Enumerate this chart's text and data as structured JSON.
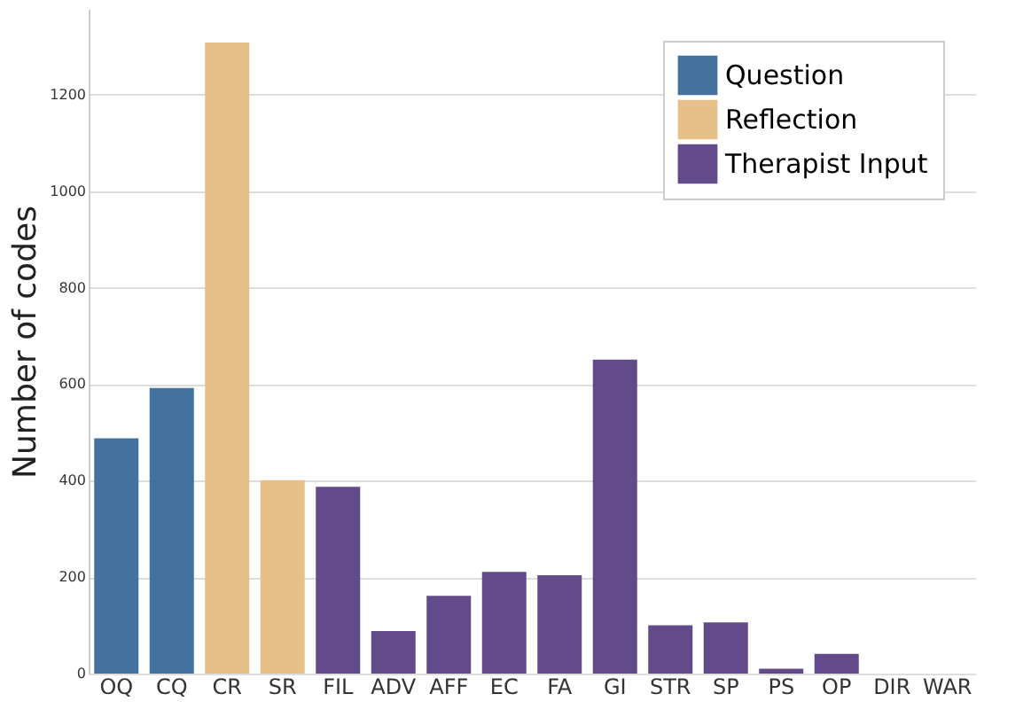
{
  "chart_data": {
    "type": "bar",
    "ylabel": "Number of codes",
    "categories": [
      "OQ",
      "CQ",
      "CR",
      "SR",
      "FIL",
      "ADV",
      "AFF",
      "EC",
      "FA",
      "GI",
      "STR",
      "SP",
      "PS",
      "OP",
      "DIR",
      "WAR"
    ],
    "series": [
      {
        "name": "Question",
        "color": "#44729e",
        "values": [
          488,
          592,
          null,
          null,
          null,
          null,
          null,
          null,
          null,
          null,
          null,
          null,
          null,
          null,
          null,
          null
        ]
      },
      {
        "name": "Reflection",
        "color": "#e6c088",
        "values": [
          null,
          null,
          1308,
          401,
          null,
          null,
          null,
          null,
          null,
          null,
          null,
          null,
          null,
          null,
          null,
          null
        ]
      },
      {
        "name": "Therapist Input",
        "color": "#634a8a",
        "values": [
          null,
          null,
          null,
          null,
          387,
          88,
          161,
          211,
          204,
          651,
          100,
          106,
          10,
          41,
          0,
          0
        ]
      }
    ],
    "ylim": [
      0,
      1378
    ],
    "yticks": [
      0,
      200,
      400,
      600,
      800,
      1000,
      1200
    ],
    "grid": "y",
    "legend": "top right"
  }
}
